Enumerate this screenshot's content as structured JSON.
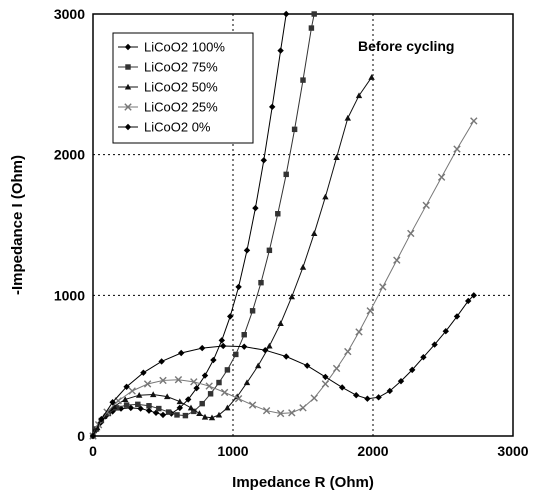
{
  "chart_data": {
    "type": "scatter",
    "title": "",
    "xlabel": "Impedance R (Ohm)",
    "ylabel": "-Impedance I (Ohm)",
    "xlim": [
      0,
      3000
    ],
    "ylim": [
      0,
      3000
    ],
    "x_ticks": [
      "0",
      "1000",
      "2000",
      "3000"
    ],
    "y_ticks": [
      "0",
      "1000",
      "2000",
      "3000"
    ],
    "grid": "dashed",
    "legend_position": "top-left",
    "annotation": "Before cycling",
    "series": [
      {
        "name": "LiCoO2 100%",
        "marker": "diamond",
        "color": "#000000",
        "points": [
          [
            0,
            0
          ],
          [
            20,
            40
          ],
          [
            50,
            90
          ],
          [
            90,
            140
          ],
          [
            140,
            175
          ],
          [
            200,
            195
          ],
          [
            270,
            200
          ],
          [
            340,
            195
          ],
          [
            400,
            180
          ],
          [
            450,
            165
          ],
          [
            500,
            150
          ],
          [
            560,
            160
          ],
          [
            620,
            200
          ],
          [
            680,
            260
          ],
          [
            740,
            340
          ],
          [
            800,
            430
          ],
          [
            860,
            540
          ],
          [
            920,
            680
          ],
          [
            980,
            850
          ],
          [
            1040,
            1060
          ],
          [
            1100,
            1320
          ],
          [
            1160,
            1620
          ],
          [
            1220,
            1960
          ],
          [
            1280,
            2340
          ],
          [
            1340,
            2740
          ],
          [
            1380,
            3000
          ]
        ]
      },
      {
        "name": "LiCoO2 75%",
        "marker": "square",
        "color": "#333333",
        "points": [
          [
            0,
            0
          ],
          [
            25,
            50
          ],
          [
            60,
            110
          ],
          [
            110,
            160
          ],
          [
            170,
            200
          ],
          [
            240,
            220
          ],
          [
            320,
            225
          ],
          [
            400,
            215
          ],
          [
            470,
            195
          ],
          [
            540,
            170
          ],
          [
            600,
            150
          ],
          [
            660,
            145
          ],
          [
            720,
            175
          ],
          [
            780,
            230
          ],
          [
            840,
            300
          ],
          [
            900,
            380
          ],
          [
            960,
            470
          ],
          [
            1020,
            580
          ],
          [
            1080,
            720
          ],
          [
            1140,
            890
          ],
          [
            1200,
            1090
          ],
          [
            1260,
            1320
          ],
          [
            1320,
            1580
          ],
          [
            1380,
            1860
          ],
          [
            1440,
            2180
          ],
          [
            1500,
            2530
          ],
          [
            1560,
            2900
          ],
          [
            1580,
            3000
          ]
        ]
      },
      {
        "name": "LiCoO2 50%",
        "marker": "triangle",
        "color": "#111111",
        "points": [
          [
            0,
            0
          ],
          [
            30,
            60
          ],
          [
            80,
            140
          ],
          [
            150,
            210
          ],
          [
            230,
            260
          ],
          [
            330,
            290
          ],
          [
            430,
            295
          ],
          [
            530,
            280
          ],
          [
            620,
            245
          ],
          [
            700,
            200
          ],
          [
            760,
            160
          ],
          [
            800,
            135
          ],
          [
            850,
            130
          ],
          [
            900,
            150
          ],
          [
            960,
            200
          ],
          [
            1030,
            280
          ],
          [
            1100,
            380
          ],
          [
            1180,
            500
          ],
          [
            1260,
            640
          ],
          [
            1340,
            800
          ],
          [
            1420,
            990
          ],
          [
            1500,
            1200
          ],
          [
            1580,
            1440
          ],
          [
            1660,
            1700
          ],
          [
            1740,
            1980
          ],
          [
            1820,
            2260
          ],
          [
            1900,
            2420
          ],
          [
            1990,
            2550
          ]
        ]
      },
      {
        "name": "LiCoO2 25%",
        "marker": "x",
        "color": "#777777",
        "points": [
          [
            0,
            0
          ],
          [
            40,
            80
          ],
          [
            100,
            170
          ],
          [
            180,
            250
          ],
          [
            280,
            320
          ],
          [
            390,
            370
          ],
          [
            500,
            395
          ],
          [
            610,
            400
          ],
          [
            720,
            385
          ],
          [
            830,
            355
          ],
          [
            940,
            310
          ],
          [
            1040,
            265
          ],
          [
            1140,
            220
          ],
          [
            1240,
            180
          ],
          [
            1340,
            160
          ],
          [
            1420,
            165
          ],
          [
            1500,
            200
          ],
          [
            1580,
            270
          ],
          [
            1660,
            370
          ],
          [
            1740,
            480
          ],
          [
            1820,
            600
          ],
          [
            1900,
            740
          ],
          [
            1980,
            890
          ],
          [
            2070,
            1060
          ],
          [
            2170,
            1250
          ],
          [
            2270,
            1440
          ],
          [
            2380,
            1640
          ],
          [
            2490,
            1840
          ],
          [
            2600,
            2040
          ],
          [
            2720,
            2240
          ]
        ]
      },
      {
        "name": "LiCoO2 0%",
        "marker": "diamond",
        "color": "#000000",
        "points": [
          [
            0,
            0
          ],
          [
            60,
            120
          ],
          [
            140,
            240
          ],
          [
            240,
            350
          ],
          [
            360,
            450
          ],
          [
            490,
            530
          ],
          [
            630,
            590
          ],
          [
            780,
            625
          ],
          [
            930,
            640
          ],
          [
            1080,
            635
          ],
          [
            1230,
            610
          ],
          [
            1380,
            565
          ],
          [
            1530,
            500
          ],
          [
            1660,
            420
          ],
          [
            1780,
            345
          ],
          [
            1880,
            290
          ],
          [
            1960,
            265
          ],
          [
            2040,
            275
          ],
          [
            2120,
            320
          ],
          [
            2200,
            390
          ],
          [
            2280,
            470
          ],
          [
            2360,
            560
          ],
          [
            2440,
            650
          ],
          [
            2520,
            745
          ],
          [
            2600,
            850
          ],
          [
            2680,
            960
          ],
          [
            2720,
            1000
          ]
        ]
      }
    ]
  }
}
